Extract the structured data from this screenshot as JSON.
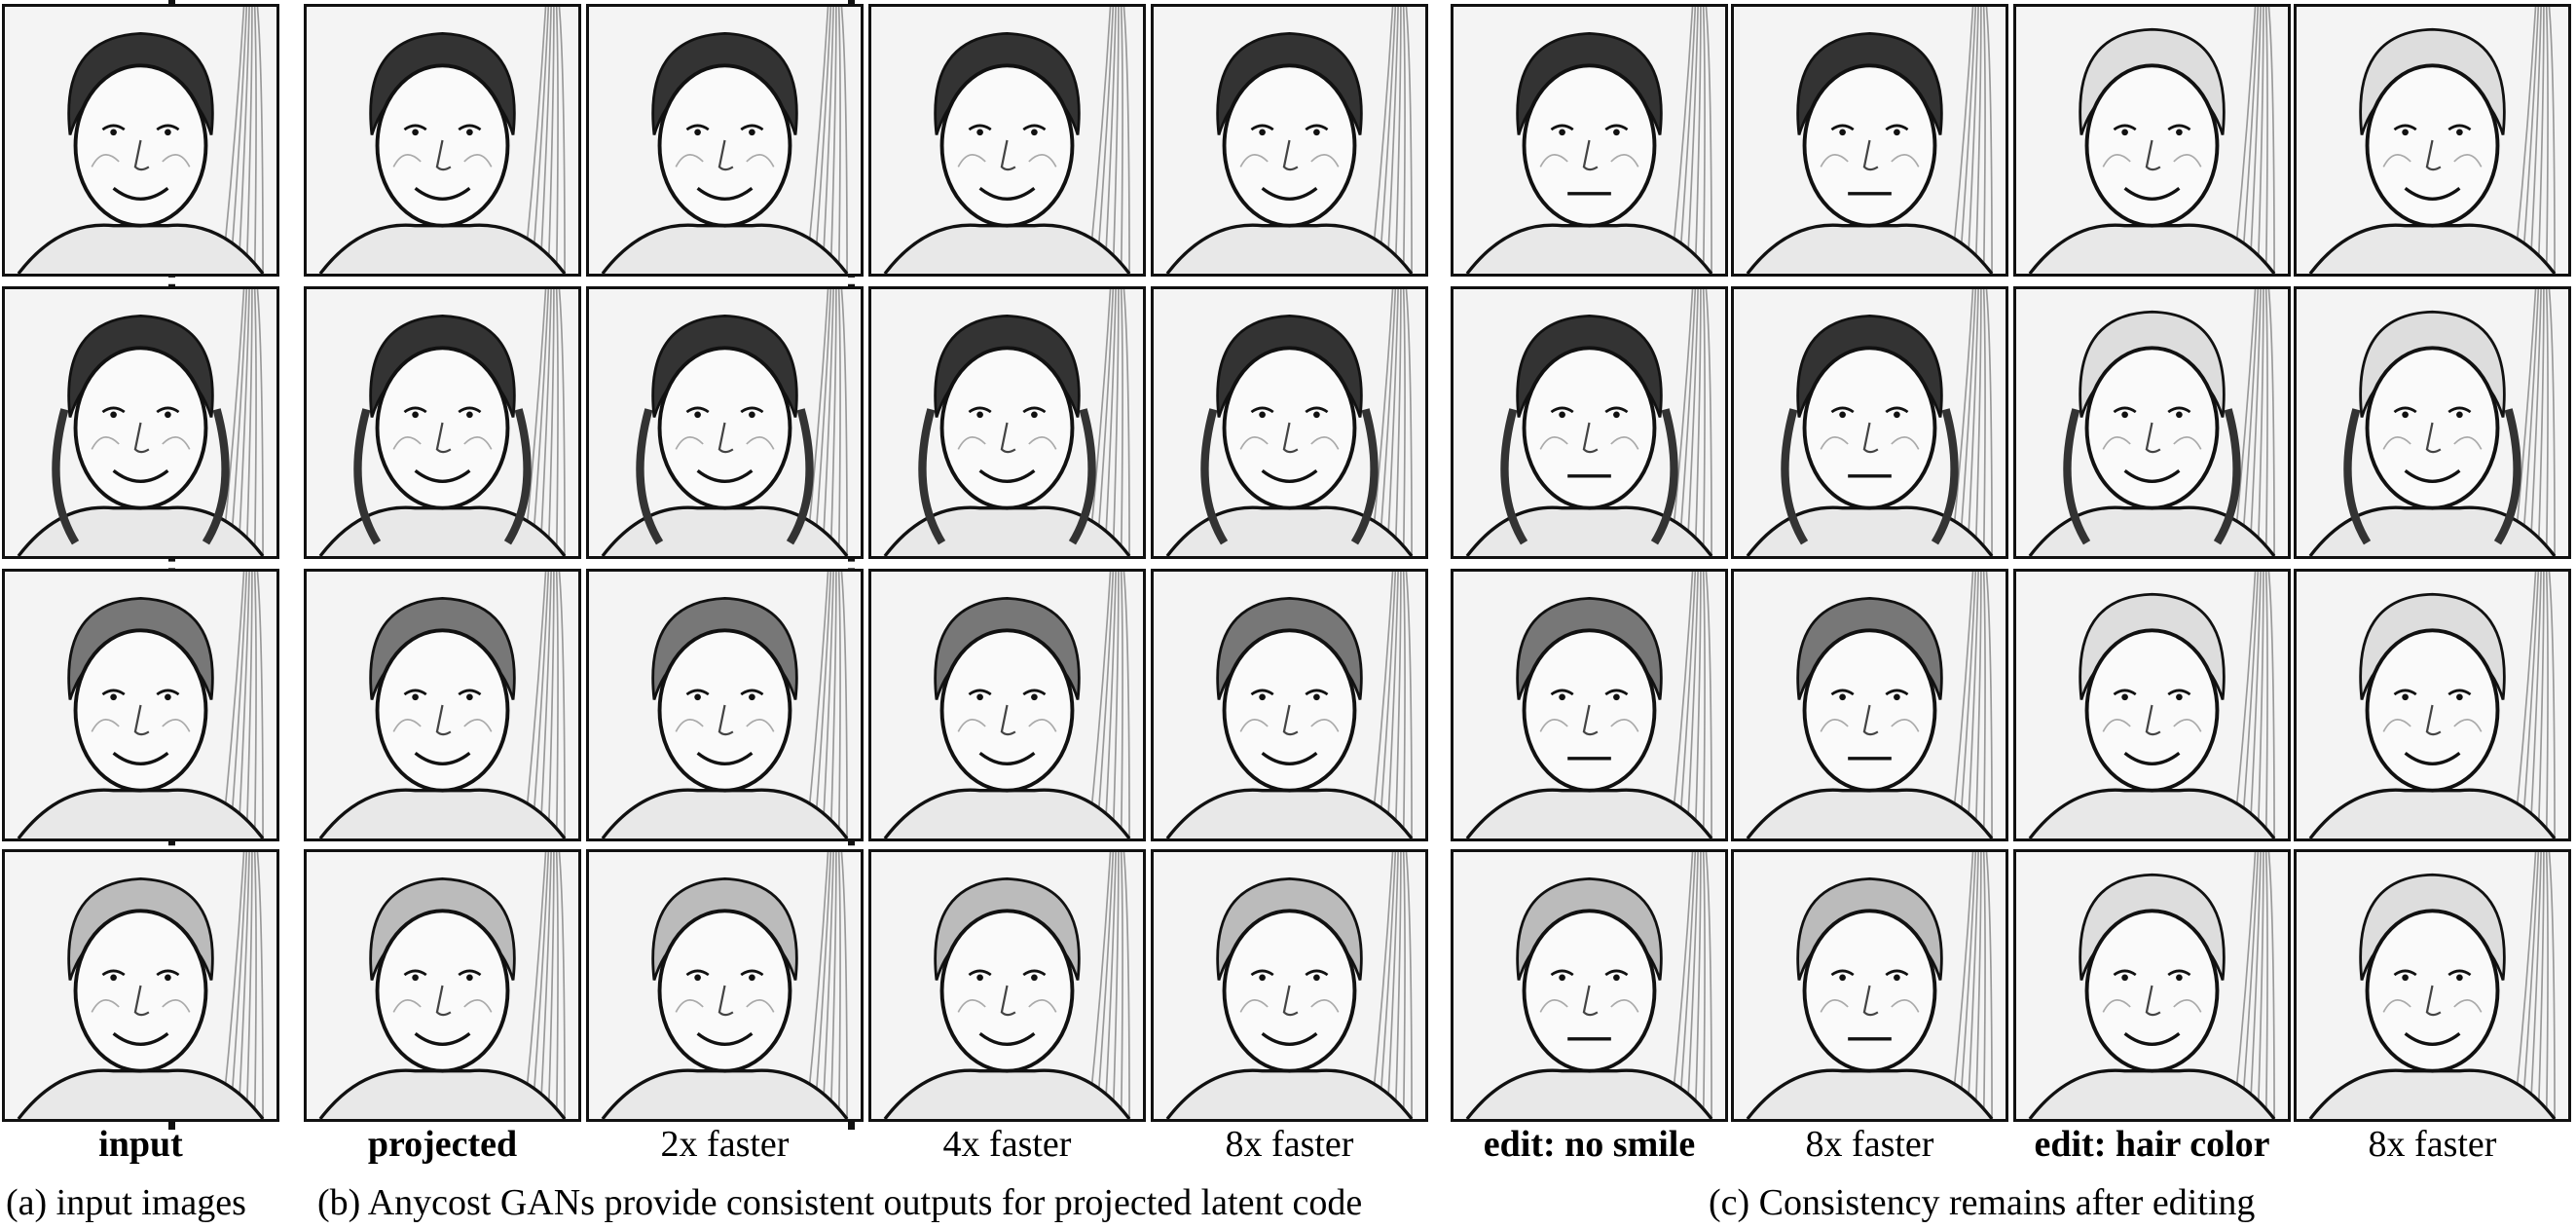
{
  "columns": [
    {
      "label": "input",
      "bold": true
    },
    {
      "label": "projected",
      "bold": true
    },
    {
      "label": "2x faster",
      "bold": false
    },
    {
      "label": "4x faster",
      "bold": false
    },
    {
      "label": "8x faster",
      "bold": false
    },
    {
      "label": "edit: no smile",
      "bold": true
    },
    {
      "label": "8x faster",
      "bold": false
    },
    {
      "label": "edit: hair color",
      "bold": true
    },
    {
      "label": "8x faster",
      "bold": false
    }
  ],
  "rows": [
    {
      "subject": "man-dark-hair",
      "hair": "dark"
    },
    {
      "subject": "woman-long-hair",
      "hair": "dark"
    },
    {
      "subject": "man-short-hair",
      "hair": "medium"
    },
    {
      "subject": "woman-short-hair",
      "hair": "light"
    }
  ],
  "captions": {
    "a": "(a) input images",
    "b": "(b) Anycost GANs provide consistent outputs for projected latent code",
    "c": "(c) Consistency remains after editing"
  }
}
